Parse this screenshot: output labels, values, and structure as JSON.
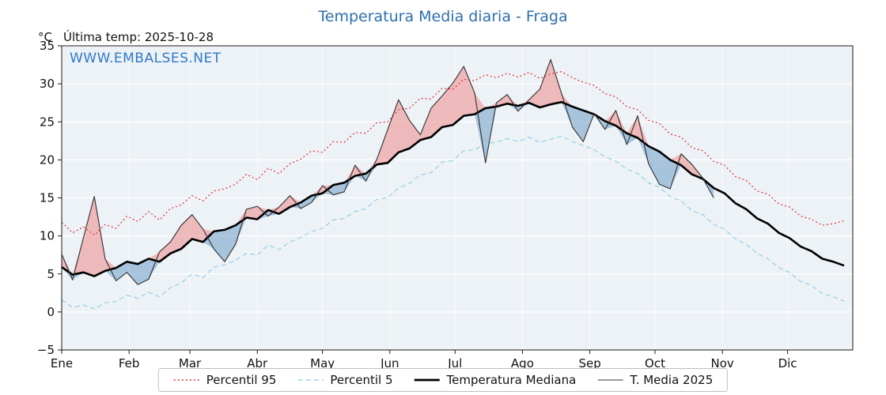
{
  "header": {
    "title": "Temperatura Media diaria - Fraga",
    "units_label": "°C",
    "last_temp_label": "Última temp: 2025-10-28",
    "watermark": "WWW.EMBALSES.NET"
  },
  "colors": {
    "title": "#2e6fad",
    "watermark": "#2e7ac8",
    "plot_bg": "#edf2f7",
    "grid": "#ffffff",
    "spine": "#1a1a1a",
    "fill_above": "#ee8a8a",
    "fill_below": "#6d9ec7"
  },
  "legend": {
    "items": [
      {
        "label": "Percentil 95",
        "color": "#e03030",
        "dash": "2 3",
        "width": 1.4
      },
      {
        "label": "Percentil 5",
        "color": "#9fd4e8",
        "dash": "6 4",
        "width": 1.6
      },
      {
        "label": "Temperatura Mediana",
        "color": "#000000",
        "dash": "",
        "width": 2.8
      },
      {
        "label": "T. Media 2025",
        "color": "#303030",
        "dash": "",
        "width": 1.1
      }
    ]
  },
  "chart_data": {
    "type": "line",
    "title": "Temperatura Media diaria - Fraga",
    "xlabel": "",
    "ylabel": "°C",
    "ylim": [
      -5,
      35
    ],
    "yticks": [
      -5,
      0,
      5,
      10,
      15,
      20,
      25,
      30,
      35
    ],
    "grid": true,
    "legend_position": "bottom",
    "x_unit": "day_of_year",
    "months": [
      "Ene",
      "Feb",
      "Mar",
      "Abr",
      "May",
      "Jun",
      "Jul",
      "Ago",
      "Sep",
      "Oct",
      "Nov",
      "Dic"
    ],
    "month_start_days": [
      1,
      32,
      60,
      91,
      121,
      152,
      182,
      213,
      244,
      274,
      305,
      335
    ],
    "x": [
      1,
      6,
      11,
      16,
      21,
      26,
      31,
      36,
      41,
      46,
      51,
      56,
      61,
      66,
      71,
      76,
      81,
      86,
      91,
      96,
      101,
      106,
      111,
      116,
      121,
      126,
      131,
      136,
      141,
      146,
      151,
      156,
      161,
      166,
      171,
      176,
      181,
      186,
      191,
      196,
      201,
      206,
      211,
      216,
      221,
      226,
      231,
      236,
      241,
      246,
      251,
      256,
      261,
      266,
      271,
      276,
      281,
      286,
      291,
      296,
      301,
      306,
      311,
      316,
      321,
      326,
      331,
      336,
      341,
      346,
      351,
      356,
      361
    ],
    "series": [
      {
        "name": "Percentil 95",
        "style": "dotted",
        "color": "#e03030",
        "values": [
          11.8,
          10.4,
          11.2,
          10.1,
          11.5,
          11.0,
          12.6,
          11.9,
          13.2,
          12.1,
          13.6,
          14.1,
          15.3,
          14.6,
          15.9,
          16.2,
          16.8,
          18.1,
          17.4,
          18.9,
          18.2,
          19.5,
          20.1,
          21.2,
          21.0,
          22.4,
          22.3,
          23.6,
          23.5,
          24.9,
          25.0,
          26.6,
          26.8,
          28.1,
          28.0,
          29.4,
          29.3,
          30.6,
          30.4,
          31.2,
          30.8,
          31.4,
          30.9,
          31.5,
          30.7,
          31.3,
          31.6,
          30.8,
          30.2,
          29.8,
          28.7,
          28.3,
          27.0,
          26.6,
          25.2,
          24.8,
          23.4,
          23.0,
          21.6,
          21.2,
          19.8,
          19.3,
          17.8,
          17.3,
          15.9,
          15.5,
          14.2,
          13.8,
          12.6,
          12.2,
          11.4,
          11.6,
          12.0
        ]
      },
      {
        "name": "Percentil 5",
        "style": "dashed",
        "color": "#9fd4e8",
        "values": [
          1.6,
          0.6,
          0.9,
          0.4,
          1.2,
          1.4,
          2.2,
          1.8,
          2.6,
          2.0,
          3.2,
          3.8,
          5.0,
          4.5,
          5.9,
          6.2,
          6.8,
          7.7,
          7.5,
          8.8,
          8.2,
          9.2,
          9.8,
          10.6,
          11.0,
          12.1,
          12.3,
          13.2,
          13.6,
          14.8,
          15.0,
          16.3,
          16.9,
          18.0,
          18.3,
          19.7,
          19.9,
          21.2,
          21.3,
          22.2,
          22.3,
          22.8,
          22.4,
          23.0,
          22.3,
          22.7,
          23.1,
          22.4,
          21.9,
          21.3,
          20.4,
          19.8,
          18.8,
          18.2,
          17.0,
          16.4,
          15.2,
          14.6,
          13.3,
          12.8,
          11.5,
          10.9,
          9.6,
          8.9,
          7.7,
          7.0,
          5.8,
          5.2,
          4.0,
          3.5,
          2.4,
          2.0,
          1.4
        ]
      },
      {
        "name": "Temperatura Mediana",
        "style": "solid-thick",
        "color": "#000000",
        "values": [
          5.9,
          4.9,
          5.2,
          4.7,
          5.4,
          5.8,
          6.6,
          6.3,
          7.0,
          6.6,
          7.7,
          8.3,
          9.6,
          9.2,
          10.6,
          10.8,
          11.4,
          12.4,
          12.2,
          13.4,
          12.9,
          13.8,
          14.4,
          15.3,
          15.6,
          16.7,
          17.0,
          17.9,
          18.2,
          19.4,
          19.6,
          21.0,
          21.5,
          22.6,
          23.0,
          24.3,
          24.6,
          25.8,
          26.0,
          26.8,
          27.0,
          27.4,
          27.1,
          27.5,
          26.9,
          27.3,
          27.6,
          27.0,
          26.5,
          26.0,
          25.1,
          24.5,
          23.5,
          22.9,
          21.8,
          21.1,
          20.0,
          19.3,
          18.1,
          17.5,
          16.3,
          15.6,
          14.3,
          13.5,
          12.3,
          11.6,
          10.4,
          9.7,
          8.6,
          8.0,
          7.0,
          6.6,
          6.1
        ]
      },
      {
        "name": "T. Media 2025",
        "style": "solid-thin",
        "color": "#303030",
        "values": [
          7.6,
          4.2,
          9.8,
          15.2,
          7.0,
          4.1,
          5.2,
          3.6,
          4.3,
          7.9,
          9.2,
          11.4,
          12.8,
          10.9,
          8.3,
          6.6,
          8.9,
          13.5,
          13.9,
          12.6,
          13.8,
          15.3,
          13.6,
          14.4,
          16.6,
          15.4,
          15.8,
          19.3,
          17.2,
          20.1,
          24.0,
          27.9,
          25.2,
          23.3,
          26.8,
          28.4,
          30.1,
          32.3,
          28.8,
          19.6,
          27.5,
          28.6,
          26.4,
          27.9,
          29.3,
          33.2,
          28.7,
          24.3,
          22.4,
          26.1,
          24.0,
          26.5,
          22.0,
          25.8,
          19.5,
          16.8,
          16.2,
          20.8,
          19.4,
          17.6,
          15.0,
          null,
          null,
          null,
          null,
          null,
          null,
          null,
          null,
          null,
          null,
          null,
          null
        ]
      }
    ]
  }
}
